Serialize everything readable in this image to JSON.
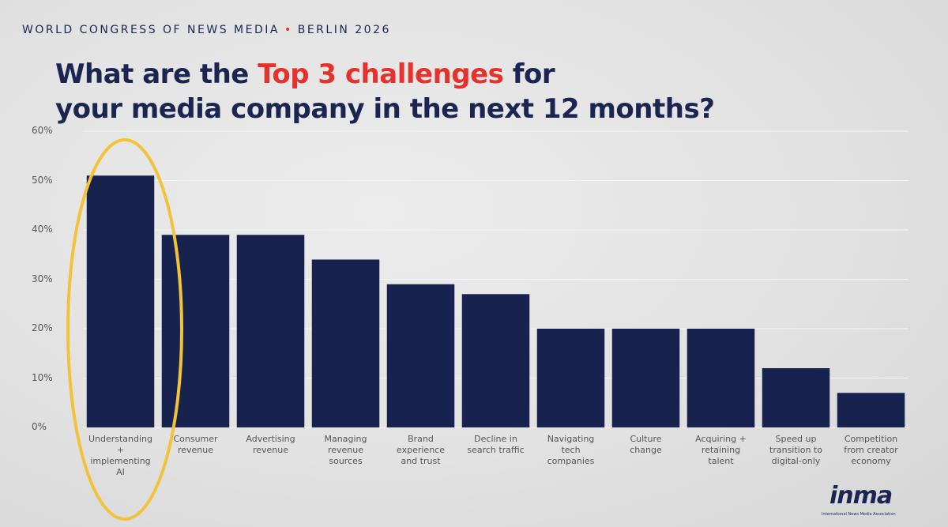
{
  "chart_data": {
    "type": "bar",
    "supertitle_parts": [
      "WORLD CONGRESS OF NEWS MEDIA",
      "•",
      "BERLIN 2026"
    ],
    "title_parts": [
      "What are the ",
      "Top 3 challenges",
      " for",
      "your media company in the next 12 months?"
    ],
    "categories": [
      "Understanding\n+\nimplementing\nAI",
      "Consumer\nrevenue",
      "Advertising\nrevenue",
      "Managing\nrevenue\nsources",
      "Brand\nexperience\nand trust",
      "Decline in\nsearch traffic",
      "Navigating\ntech\ncompanies",
      "Culture\nchange",
      "Acquiring +\nretaining\ntalent",
      "Speed up\ntransition to\ndigital-only",
      "Competition\nfrom creator\neconomy"
    ],
    "values": [
      51,
      39,
      39,
      34,
      29,
      27,
      20,
      20,
      20,
      12,
      7
    ],
    "color": "#17224f",
    "ylim": [
      0,
      60
    ],
    "yticks": [
      {
        "value": 0,
        "label": "0%"
      },
      {
        "value": 10,
        "label": "10%"
      },
      {
        "value": 20,
        "label": "20%"
      },
      {
        "value": 30,
        "label": "30%"
      },
      {
        "value": 40,
        "label": "40%"
      },
      {
        "value": 50,
        "label": "50%"
      },
      {
        "value": 60,
        "label": "60%"
      }
    ],
    "grid": true,
    "logo": "inma",
    "logo_tagline": "International News Media Association"
  }
}
